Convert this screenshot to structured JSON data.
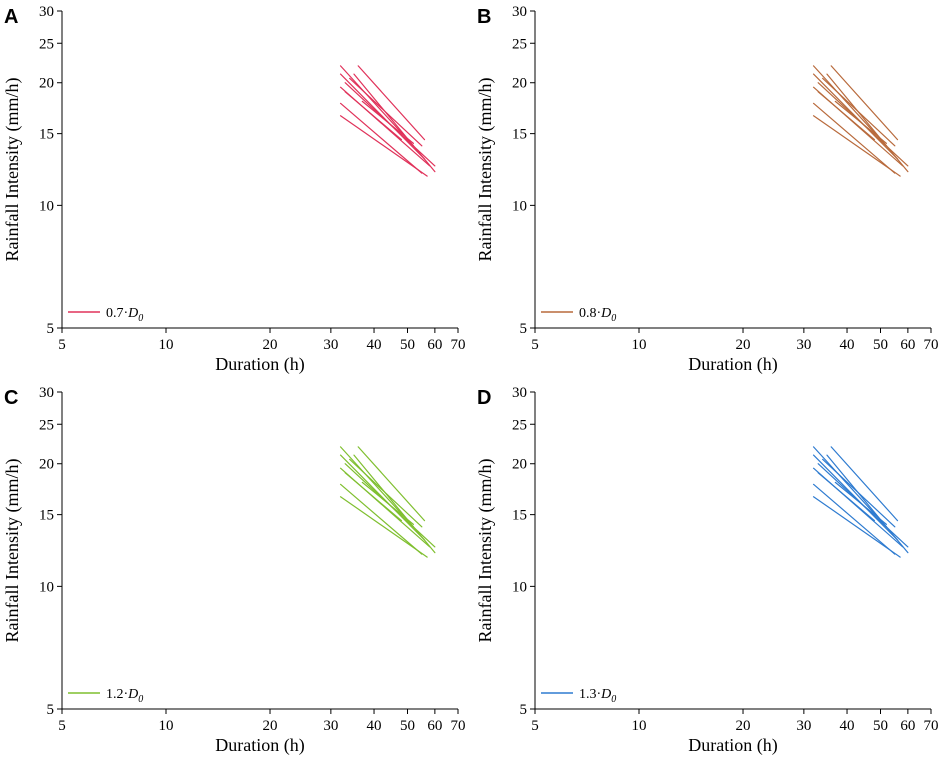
{
  "figure": {
    "panels_layout": "2x2 grid",
    "chart_data": [
      {
        "type": "line",
        "panel_letter": "A",
        "xlabel": "Duration (h)",
        "ylabel": "Rainfall Intensity (mm/h)",
        "xscale": "log",
        "yscale": "log",
        "xlim": [
          5,
          70
        ],
        "ylim": [
          5,
          30
        ],
        "xticks": [
          5,
          10,
          20,
          30,
          40,
          50,
          60,
          70
        ],
        "yticks": [
          5,
          10,
          15,
          20,
          25,
          30
        ],
        "legend": {
          "prefix": "0.7·",
          "symbol": "D",
          "subscript": "0",
          "placement": "bottom-left"
        },
        "color": "#e0325a",
        "series": [
          {
            "x": [
              32,
              52
            ],
            "y": [
              22.0,
              14.0
            ]
          },
          {
            "x": [
              32,
              56
            ],
            "y": [
              21.0,
              13.0
            ]
          },
          {
            "x": [
              33,
              60
            ],
            "y": [
              20.0,
              12.5
            ]
          },
          {
            "x": [
              32,
              58
            ],
            "y": [
              19.5,
              12.5
            ]
          },
          {
            "x": [
              32,
              55
            ],
            "y": [
              17.8,
              12.0
            ]
          },
          {
            "x": [
              32,
              57
            ],
            "y": [
              16.6,
              11.8
            ]
          },
          {
            "x": [
              35,
              60
            ],
            "y": [
              21.0,
              12.1
            ]
          },
          {
            "x": [
              36,
              56
            ],
            "y": [
              22.0,
              14.5
            ]
          },
          {
            "x": [
              34,
              55
            ],
            "y": [
              20.5,
              14.0
            ]
          },
          {
            "x": [
              37,
              52
            ],
            "y": [
              18.0,
              14.2
            ]
          },
          {
            "x": [
              33,
              48
            ],
            "y": [
              19.0,
              14.5
            ]
          }
        ]
      },
      {
        "type": "line",
        "panel_letter": "B",
        "xlabel": "Duration (h)",
        "ylabel": "Rainfall Intensity (mm/h)",
        "xscale": "log",
        "yscale": "log",
        "xlim": [
          5,
          70
        ],
        "ylim": [
          5,
          30
        ],
        "xticks": [
          5,
          10,
          20,
          30,
          40,
          50,
          60,
          70
        ],
        "yticks": [
          5,
          10,
          15,
          20,
          25,
          30
        ],
        "legend": {
          "prefix": "0.8·",
          "symbol": "D",
          "subscript": "0",
          "placement": "bottom-left"
        },
        "color": "#b86a3c",
        "series": [
          {
            "x": [
              32,
              52
            ],
            "y": [
              22.0,
              14.0
            ]
          },
          {
            "x": [
              32,
              56
            ],
            "y": [
              21.0,
              13.0
            ]
          },
          {
            "x": [
              33,
              60
            ],
            "y": [
              20.0,
              12.5
            ]
          },
          {
            "x": [
              32,
              58
            ],
            "y": [
              19.5,
              12.5
            ]
          },
          {
            "x": [
              32,
              55
            ],
            "y": [
              17.8,
              12.0
            ]
          },
          {
            "x": [
              32,
              57
            ],
            "y": [
              16.6,
              11.8
            ]
          },
          {
            "x": [
              35,
              60
            ],
            "y": [
              21.0,
              12.1
            ]
          },
          {
            "x": [
              36,
              56
            ],
            "y": [
              22.0,
              14.5
            ]
          },
          {
            "x": [
              34,
              55
            ],
            "y": [
              20.5,
              14.0
            ]
          },
          {
            "x": [
              37,
              52
            ],
            "y": [
              18.0,
              14.2
            ]
          },
          {
            "x": [
              33,
              48
            ],
            "y": [
              19.0,
              14.5
            ]
          }
        ]
      },
      {
        "type": "line",
        "panel_letter": "C",
        "xlabel": "Duration (h)",
        "ylabel": "Rainfall Intensity (mm/h)",
        "xscale": "log",
        "yscale": "log",
        "xlim": [
          5,
          70
        ],
        "ylim": [
          5,
          30
        ],
        "xticks": [
          5,
          10,
          20,
          30,
          40,
          50,
          60,
          70
        ],
        "yticks": [
          5,
          10,
          15,
          20,
          25,
          30
        ],
        "legend": {
          "prefix": "1.2·",
          "symbol": "D",
          "subscript": "0",
          "placement": "bottom-left"
        },
        "color": "#7fbf2f",
        "series": [
          {
            "x": [
              32,
              52
            ],
            "y": [
              22.0,
              14.0
            ]
          },
          {
            "x": [
              32,
              56
            ],
            "y": [
              21.0,
              13.0
            ]
          },
          {
            "x": [
              33,
              60
            ],
            "y": [
              20.0,
              12.5
            ]
          },
          {
            "x": [
              32,
              58
            ],
            "y": [
              19.5,
              12.5
            ]
          },
          {
            "x": [
              32,
              55
            ],
            "y": [
              17.8,
              12.0
            ]
          },
          {
            "x": [
              32,
              57
            ],
            "y": [
              16.6,
              11.8
            ]
          },
          {
            "x": [
              35,
              60
            ],
            "y": [
              21.0,
              12.1
            ]
          },
          {
            "x": [
              36,
              56
            ],
            "y": [
              22.0,
              14.5
            ]
          },
          {
            "x": [
              34,
              55
            ],
            "y": [
              20.5,
              14.0
            ]
          },
          {
            "x": [
              37,
              52
            ],
            "y": [
              18.0,
              14.2
            ]
          },
          {
            "x": [
              33,
              48
            ],
            "y": [
              19.0,
              14.5
            ]
          }
        ]
      },
      {
        "type": "line",
        "panel_letter": "D",
        "xlabel": "Duration (h)",
        "ylabel": "Rainfall Intensity (mm/h)",
        "xscale": "log",
        "yscale": "log",
        "xlim": [
          5,
          70
        ],
        "ylim": [
          5,
          30
        ],
        "xticks": [
          5,
          10,
          20,
          30,
          40,
          50,
          60,
          70
        ],
        "yticks": [
          5,
          10,
          15,
          20,
          25,
          30
        ],
        "legend": {
          "prefix": "1.3·",
          "symbol": "D",
          "subscript": "0",
          "placement": "bottom-left"
        },
        "color": "#2e7bd0",
        "series": [
          {
            "x": [
              32,
              52
            ],
            "y": [
              22.0,
              14.0
            ]
          },
          {
            "x": [
              32,
              56
            ],
            "y": [
              21.0,
              13.0
            ]
          },
          {
            "x": [
              33,
              60
            ],
            "y": [
              20.0,
              12.5
            ]
          },
          {
            "x": [
              32,
              58
            ],
            "y": [
              19.5,
              12.5
            ]
          },
          {
            "x": [
              32,
              55
            ],
            "y": [
              17.8,
              12.0
            ]
          },
          {
            "x": [
              32,
              57
            ],
            "y": [
              16.6,
              11.8
            ]
          },
          {
            "x": [
              35,
              60
            ],
            "y": [
              21.0,
              12.1
            ]
          },
          {
            "x": [
              36,
              56
            ],
            "y": [
              22.0,
              14.5
            ]
          },
          {
            "x": [
              34,
              55
            ],
            "y": [
              20.5,
              14.0
            ]
          },
          {
            "x": [
              37,
              52
            ],
            "y": [
              18.0,
              14.2
            ]
          },
          {
            "x": [
              33,
              48
            ],
            "y": [
              19.0,
              14.5
            ]
          }
        ]
      }
    ]
  }
}
